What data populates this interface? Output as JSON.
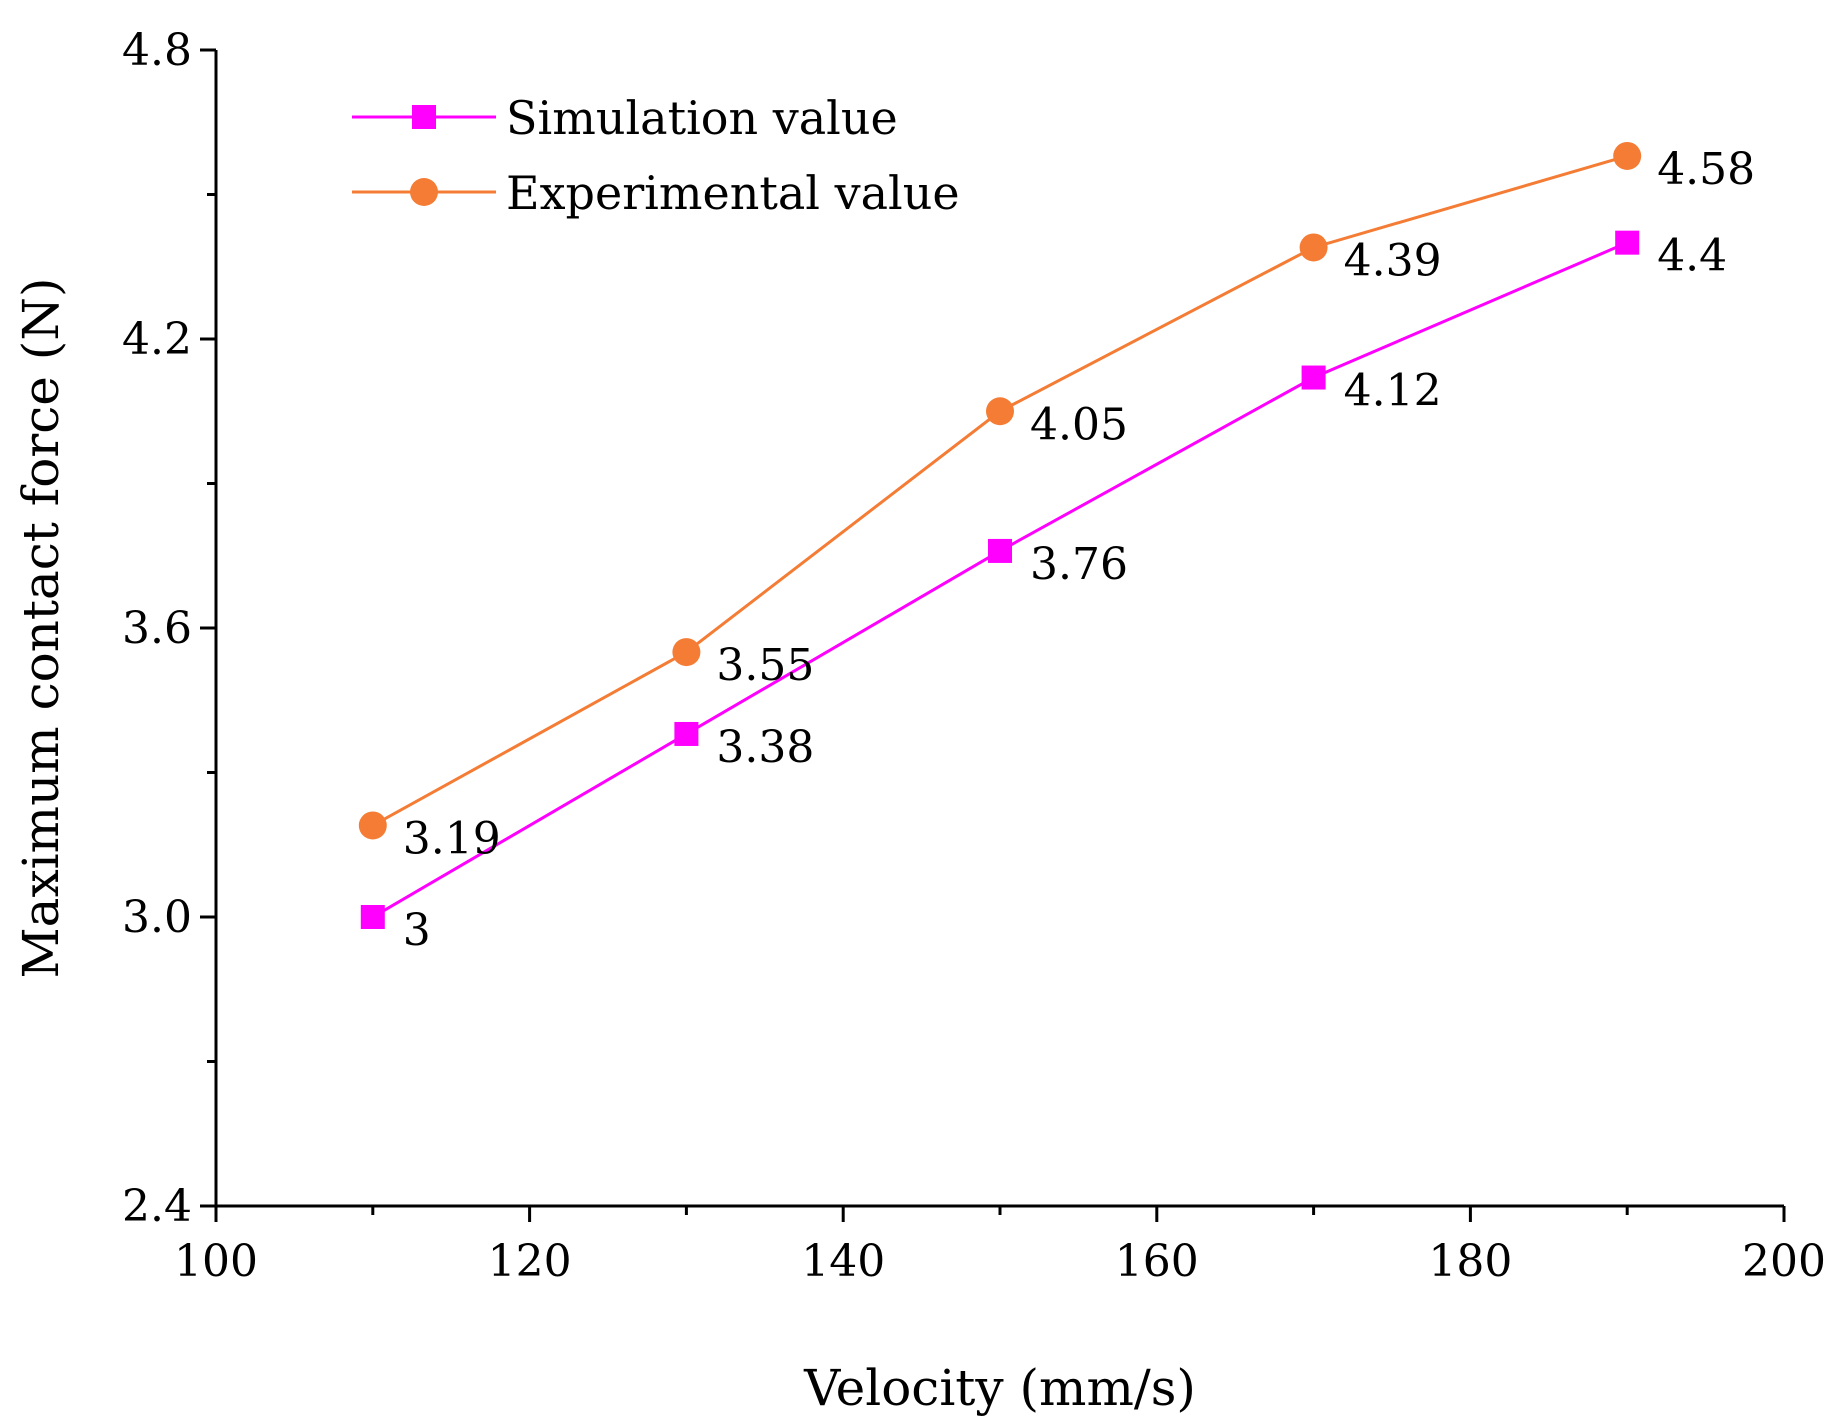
{
  "chart_data": {
    "type": "line",
    "title": "",
    "xlabel": "Velocity (mm/s)",
    "ylabel": "Maximum contact force (N)",
    "xlim": [
      100,
      200
    ],
    "ylim": [
      2.4,
      4.8
    ],
    "x_ticks": [
      "100",
      "120",
      "140",
      "160",
      "180",
      "200"
    ],
    "y_ticks": [
      "2.4",
      "3.0",
      "3.6",
      "4.2",
      "4.8"
    ],
    "grid": false,
    "legend_position": "top-left",
    "x": [
      110,
      130,
      150,
      170,
      190
    ],
    "series": [
      {
        "name": "Simulation value",
        "color": "#ff00ff",
        "marker": "square",
        "values": [
          3,
          3.38,
          3.76,
          4.12,
          4.4
        ],
        "labels": [
          "3",
          "3.38",
          "3.76",
          "4.12",
          "4.4"
        ]
      },
      {
        "name": "Experimental value",
        "color": "#f47c34",
        "marker": "circle",
        "values": [
          3.19,
          3.55,
          4.05,
          4.39,
          4.58
        ],
        "labels": [
          "3.19",
          "3.55",
          "4.05",
          "4.39",
          "4.58"
        ]
      }
    ]
  }
}
